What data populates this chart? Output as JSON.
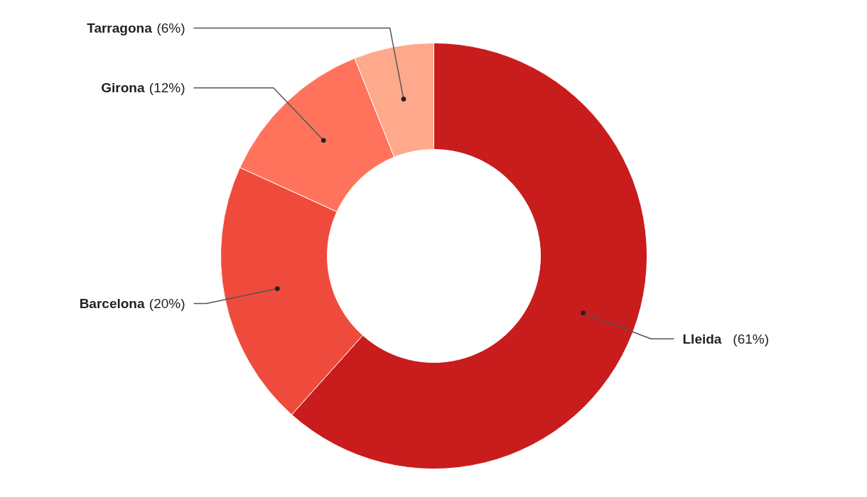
{
  "chart_data": {
    "type": "donut",
    "categories": [
      "Lleida",
      "Barcelona",
      "Girona",
      "Tarragona"
    ],
    "values": [
      61,
      20,
      12,
      6
    ],
    "value_labels": [
      "(61%)",
      "(20%)",
      "(12%)",
      "(6%)"
    ],
    "colors": [
      "#c91c1c",
      "#ef4b3c",
      "#ff735d",
      "#ffa98c"
    ]
  }
}
